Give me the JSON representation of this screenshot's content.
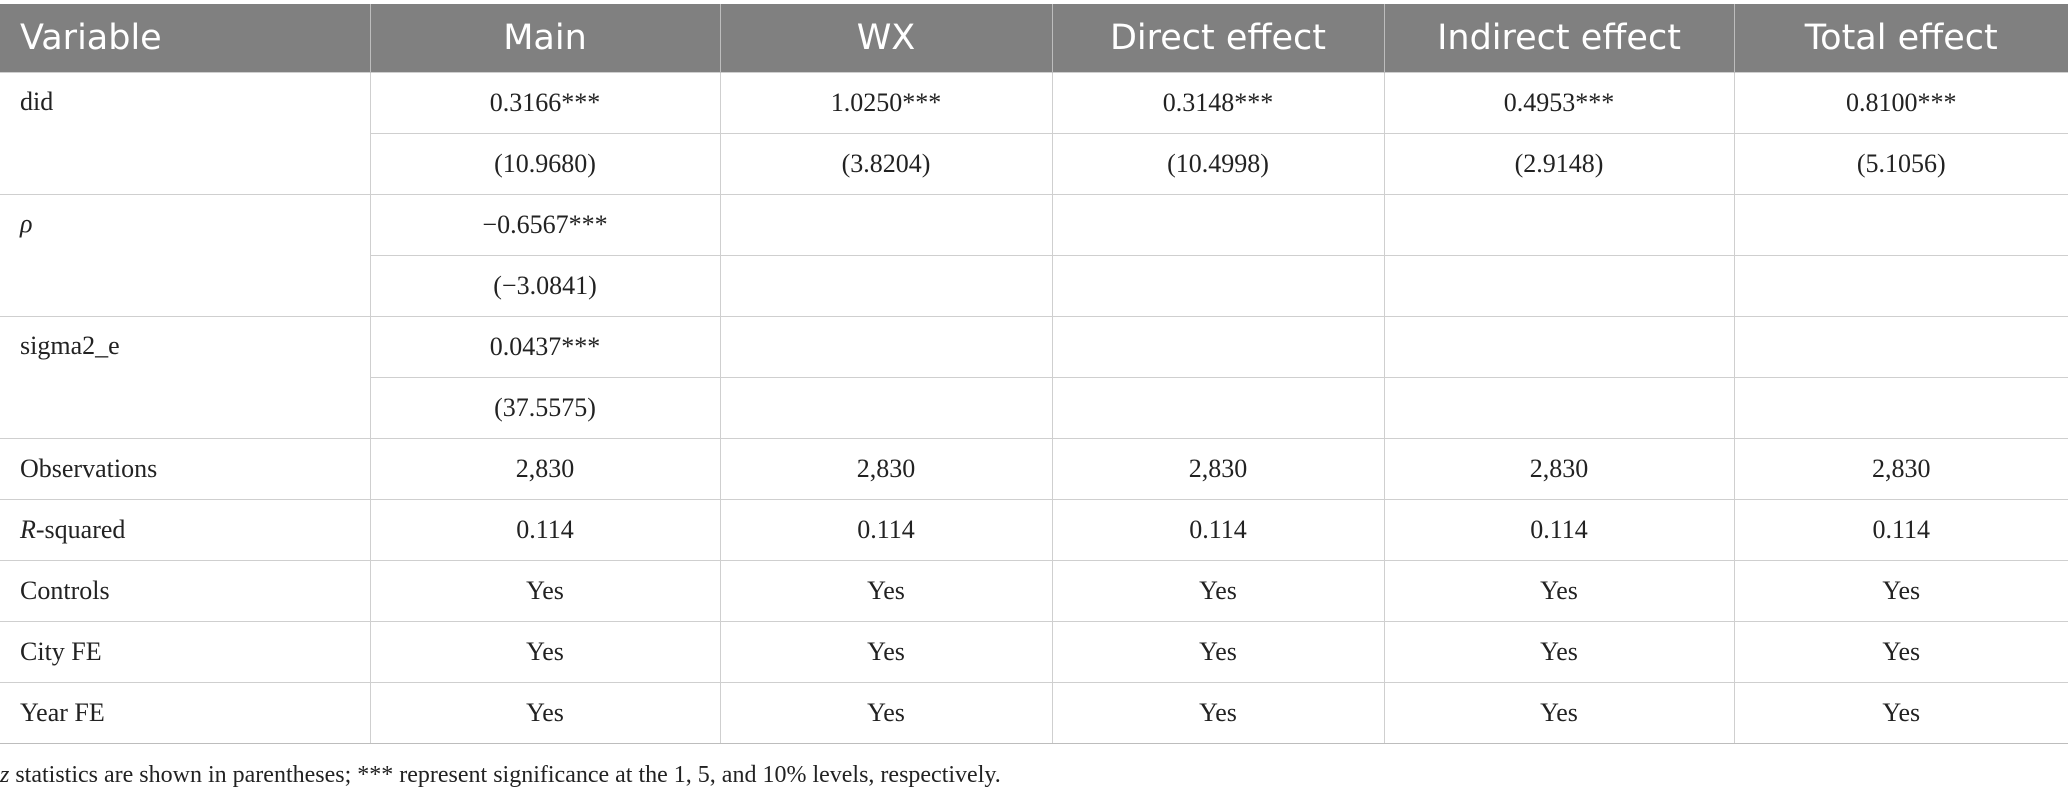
{
  "header": {
    "variable": "Variable",
    "main": "Main",
    "wx": "WX",
    "direct": "Direct effect",
    "indirect": "Indirect effect",
    "total": "Total effect"
  },
  "rows": {
    "did": {
      "label": "did",
      "coef": [
        "0.3166***",
        "1.0250***",
        "0.3148***",
        "0.4953***",
        "0.8100***"
      ],
      "stat": [
        "(10.9680)",
        "(3.8204)",
        "(10.4998)",
        "(2.9148)",
        "(5.1056)"
      ]
    },
    "rho": {
      "label": "ρ",
      "coef": [
        "−0.6567***",
        "",
        "",
        "",
        ""
      ],
      "stat": [
        "(−3.0841)",
        "",
        "",
        "",
        ""
      ]
    },
    "sigma": {
      "label": "sigma2_e",
      "coef": [
        "0.0437***",
        "",
        "",
        "",
        ""
      ],
      "stat": [
        "(37.5575)",
        "",
        "",
        "",
        ""
      ]
    },
    "observations": {
      "label": "Observations",
      "values": [
        "2,830",
        "2,830",
        "2,830",
        "2,830",
        "2,830"
      ]
    },
    "rsquared": {
      "label_italic": "R",
      "label_rest": "-squared",
      "values": [
        "0.114",
        "0.114",
        "0.114",
        "0.114",
        "0.114"
      ]
    },
    "controls": {
      "label": "Controls",
      "values": [
        "Yes",
        "Yes",
        "Yes",
        "Yes",
        "Yes"
      ]
    },
    "cityfe": {
      "label": "City FE",
      "values": [
        "Yes",
        "Yes",
        "Yes",
        "Yes",
        "Yes"
      ]
    },
    "yearfe": {
      "label": "Year FE",
      "values": [
        "Yes",
        "Yes",
        "Yes",
        "Yes",
        "Yes"
      ]
    }
  },
  "note": {
    "italic": "z",
    "text": " statistics are shown in parentheses; *** represent significance at the 1, 5, and 10% levels, respectively."
  }
}
